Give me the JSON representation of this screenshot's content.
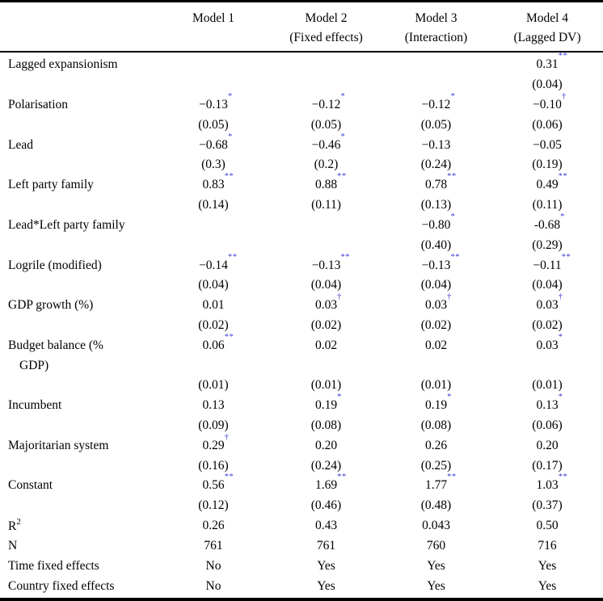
{
  "colors": {
    "marker": "#3b3fd4",
    "text": "#000000",
    "rule": "#000000"
  },
  "header": {
    "models": [
      {
        "line1": "Model 1",
        "line2": ""
      },
      {
        "line1": "Model 2",
        "line2": "(Fixed effects)"
      },
      {
        "line1": "Model 3",
        "line2": "(Interaction)"
      },
      {
        "line1": "Model 4",
        "line2": "(Lagged DV)"
      }
    ]
  },
  "rows": [
    {
      "label": "Lagged expansionism",
      "label_sup": "",
      "indent": false,
      "cells": [
        {
          "v": "",
          "s": ""
        },
        {
          "v": "",
          "s": ""
        },
        {
          "v": "",
          "s": ""
        },
        {
          "v": "0.31",
          "s": "**"
        }
      ]
    },
    {
      "label": "",
      "label_sup": "",
      "indent": false,
      "cells": [
        {
          "v": "",
          "s": ""
        },
        {
          "v": "",
          "s": ""
        },
        {
          "v": "",
          "s": ""
        },
        {
          "v": "(0.04)",
          "s": ""
        }
      ]
    },
    {
      "label": "Polarisation",
      "label_sup": "",
      "indent": false,
      "cells": [
        {
          "v": "−0.13",
          "s": "*"
        },
        {
          "v": "−0.12",
          "s": "*"
        },
        {
          "v": "−0.12",
          "s": "*"
        },
        {
          "v": "−0.10",
          "s": "†"
        }
      ]
    },
    {
      "label": "",
      "label_sup": "",
      "indent": false,
      "cells": [
        {
          "v": "(0.05)",
          "s": ""
        },
        {
          "v": "(0.05)",
          "s": ""
        },
        {
          "v": "(0.05)",
          "s": ""
        },
        {
          "v": "(0.06)",
          "s": ""
        }
      ]
    },
    {
      "label": "Lead",
      "label_sup": "",
      "indent": false,
      "cells": [
        {
          "v": "−0.68",
          "s": "*"
        },
        {
          "v": "−0.46",
          "s": "*"
        },
        {
          "v": "−0.13",
          "s": ""
        },
        {
          "v": "−0.05",
          "s": ""
        }
      ]
    },
    {
      "label": "",
      "label_sup": "",
      "indent": false,
      "cells": [
        {
          "v": "(0.3)",
          "s": ""
        },
        {
          "v": "(0.2)",
          "s": ""
        },
        {
          "v": "(0.24)",
          "s": ""
        },
        {
          "v": "(0.19)",
          "s": ""
        }
      ]
    },
    {
      "label": "Left party family",
      "label_sup": "",
      "indent": false,
      "cells": [
        {
          "v": "0.83",
          "s": "**"
        },
        {
          "v": "0.88",
          "s": "**"
        },
        {
          "v": "0.78",
          "s": "**"
        },
        {
          "v": "0.49",
          "s": "**"
        }
      ]
    },
    {
      "label": "",
      "label_sup": "",
      "indent": false,
      "cells": [
        {
          "v": "(0.14)",
          "s": ""
        },
        {
          "v": "(0.11)",
          "s": ""
        },
        {
          "v": "(0.13)",
          "s": ""
        },
        {
          "v": "(0.11)",
          "s": ""
        }
      ]
    },
    {
      "label": "Lead*Left party family",
      "label_sup": "",
      "indent": false,
      "cells": [
        {
          "v": "",
          "s": ""
        },
        {
          "v": "",
          "s": ""
        },
        {
          "v": "−0.80",
          "s": "*"
        },
        {
          "v": "-0.68",
          "s": "*"
        }
      ]
    },
    {
      "label": "",
      "label_sup": "",
      "indent": false,
      "cells": [
        {
          "v": "",
          "s": ""
        },
        {
          "v": "",
          "s": ""
        },
        {
          "v": "(0.40)",
          "s": ""
        },
        {
          "v": "(0.29)",
          "s": ""
        }
      ]
    },
    {
      "label": "Logrile (modified)",
      "label_sup": "",
      "indent": false,
      "cells": [
        {
          "v": "−0.14",
          "s": "**"
        },
        {
          "v": "−0.13",
          "s": "**"
        },
        {
          "v": "−0.13",
          "s": "**"
        },
        {
          "v": "−0.11",
          "s": "**"
        }
      ]
    },
    {
      "label": "",
      "label_sup": "",
      "indent": false,
      "cells": [
        {
          "v": "(0.04)",
          "s": ""
        },
        {
          "v": "(0.04)",
          "s": ""
        },
        {
          "v": "(0.04)",
          "s": ""
        },
        {
          "v": "(0.04)",
          "s": ""
        }
      ]
    },
    {
      "label": "GDP growth (%)",
      "label_sup": "",
      "indent": false,
      "cells": [
        {
          "v": "0.01",
          "s": ""
        },
        {
          "v": "0.03",
          "s": "†"
        },
        {
          "v": "0.03",
          "s": "†"
        },
        {
          "v": "0.03",
          "s": "†"
        }
      ]
    },
    {
      "label": "",
      "label_sup": "",
      "indent": false,
      "cells": [
        {
          "v": "(0.02)",
          "s": ""
        },
        {
          "v": "(0.02)",
          "s": ""
        },
        {
          "v": "(0.02)",
          "s": ""
        },
        {
          "v": "(0.02)",
          "s": ""
        }
      ]
    },
    {
      "label": "Budget balance (%",
      "label_sup": "",
      "indent": false,
      "cells": [
        {
          "v": "0.06",
          "s": "**"
        },
        {
          "v": "0.02",
          "s": ""
        },
        {
          "v": "0.02",
          "s": ""
        },
        {
          "v": "0.03",
          "s": "*"
        }
      ]
    },
    {
      "label": "GDP)",
      "label_sup": "",
      "indent": true,
      "cells": [
        {
          "v": "",
          "s": ""
        },
        {
          "v": "",
          "s": ""
        },
        {
          "v": "",
          "s": ""
        },
        {
          "v": "",
          "s": ""
        }
      ]
    },
    {
      "label": "",
      "label_sup": "",
      "indent": false,
      "cells": [
        {
          "v": "(0.01)",
          "s": ""
        },
        {
          "v": "(0.01)",
          "s": ""
        },
        {
          "v": "(0.01)",
          "s": ""
        },
        {
          "v": "(0.01)",
          "s": ""
        }
      ]
    },
    {
      "label": "Incumbent",
      "label_sup": "",
      "indent": false,
      "cells": [
        {
          "v": "0.13",
          "s": ""
        },
        {
          "v": "0.19",
          "s": "*"
        },
        {
          "v": "0.19",
          "s": "*"
        },
        {
          "v": "0.13",
          "s": "*"
        }
      ]
    },
    {
      "label": "",
      "label_sup": "",
      "indent": false,
      "cells": [
        {
          "v": "(0.09)",
          "s": ""
        },
        {
          "v": "(0.08)",
          "s": ""
        },
        {
          "v": "(0.08)",
          "s": ""
        },
        {
          "v": "(0.06)",
          "s": ""
        }
      ]
    },
    {
      "label": "Majoritarian system",
      "label_sup": "",
      "indent": false,
      "cells": [
        {
          "v": "0.29",
          "s": "†"
        },
        {
          "v": "0.20",
          "s": ""
        },
        {
          "v": "0.26",
          "s": ""
        },
        {
          "v": "0.20",
          "s": ""
        }
      ]
    },
    {
      "label": "",
      "label_sup": "",
      "indent": false,
      "cells": [
        {
          "v": "(0.16)",
          "s": ""
        },
        {
          "v": "(0.24)",
          "s": ""
        },
        {
          "v": "(0.25)",
          "s": ""
        },
        {
          "v": "(0.17)",
          "s": ""
        }
      ]
    },
    {
      "label": "Constant",
      "label_sup": "",
      "indent": false,
      "cells": [
        {
          "v": "0.56",
          "s": "**"
        },
        {
          "v": "1.69",
          "s": "**"
        },
        {
          "v": "1.77",
          "s": "**"
        },
        {
          "v": "1.03",
          "s": "**"
        }
      ]
    },
    {
      "label": "",
      "label_sup": "",
      "indent": false,
      "cells": [
        {
          "v": "(0.12)",
          "s": ""
        },
        {
          "v": "(0.46)",
          "s": ""
        },
        {
          "v": "(0.48)",
          "s": ""
        },
        {
          "v": "(0.37)",
          "s": ""
        }
      ]
    },
    {
      "label": "R",
      "label_sup": "2",
      "indent": false,
      "cells": [
        {
          "v": "0.26",
          "s": ""
        },
        {
          "v": "0.43",
          "s": ""
        },
        {
          "v": "0.043",
          "s": ""
        },
        {
          "v": "0.50",
          "s": ""
        }
      ]
    },
    {
      "label": "N",
      "label_sup": "",
      "indent": false,
      "cells": [
        {
          "v": "761",
          "s": ""
        },
        {
          "v": "761",
          "s": ""
        },
        {
          "v": "760",
          "s": ""
        },
        {
          "v": "716",
          "s": ""
        }
      ]
    },
    {
      "label": "Time fixed effects",
      "label_sup": "",
      "indent": false,
      "cells": [
        {
          "v": "No",
          "s": ""
        },
        {
          "v": "Yes",
          "s": ""
        },
        {
          "v": "Yes",
          "s": ""
        },
        {
          "v": "Yes",
          "s": ""
        }
      ]
    },
    {
      "label": "Country fixed effects",
      "label_sup": "",
      "indent": false,
      "cells": [
        {
          "v": "No",
          "s": ""
        },
        {
          "v": "Yes",
          "s": ""
        },
        {
          "v": "Yes",
          "s": ""
        },
        {
          "v": "Yes",
          "s": ""
        }
      ]
    }
  ]
}
